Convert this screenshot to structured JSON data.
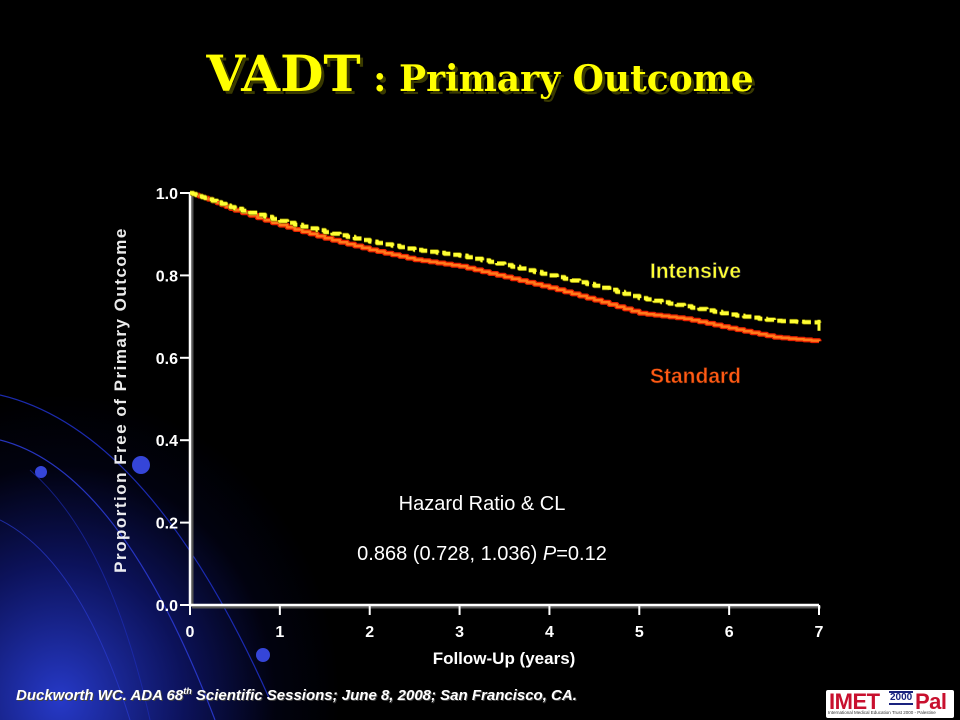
{
  "slide": {
    "title_main": "VADT",
    "title_sub": " : Primary Outcome",
    "citation_pre": "Duckworth WC. ADA 68",
    "citation_sup": "th",
    "citation_post": " Scientific Sessions; June 8, 2008; San Francisco, CA.",
    "logo": {
      "word_left": "IMET",
      "word_year": "2000",
      "word_right": "Pal",
      "tagline": "International Medical Education Trust 2000 - Palestine"
    }
  },
  "colors": {
    "title": "#ffff00",
    "intensive": "#ffff33",
    "standard_fill": "#ff7a1a",
    "standard_edge": "#e82000",
    "axis": "#ffffff"
  },
  "chart_data": {
    "type": "line",
    "title": "",
    "xlabel": "Follow-Up (years)",
    "ylabel": "Proportion Free of Primary Outcome",
    "xlim": [
      0,
      7
    ],
    "ylim": [
      0.0,
      1.0
    ],
    "x_ticks": [
      0,
      1,
      2,
      3,
      4,
      5,
      6,
      7
    ],
    "y_ticks": [
      0.0,
      0.2,
      0.4,
      0.6,
      0.8,
      1.0
    ],
    "y_tick_labels": [
      "0.0",
      "0.2",
      "0.4",
      "0.6",
      "0.8",
      "1.0"
    ],
    "grid": false,
    "series": [
      {
        "name": "Intensive",
        "style": "dashed",
        "points": [
          [
            0,
            1.0
          ],
          [
            0.2,
            0.985
          ],
          [
            0.5,
            0.962
          ],
          [
            1.0,
            0.932
          ],
          [
            1.5,
            0.905
          ],
          [
            2.0,
            0.882
          ],
          [
            2.5,
            0.862
          ],
          [
            3.0,
            0.848
          ],
          [
            3.5,
            0.825
          ],
          [
            4.0,
            0.8
          ],
          [
            4.5,
            0.775
          ],
          [
            5.0,
            0.745
          ],
          [
            5.5,
            0.725
          ],
          [
            6.0,
            0.705
          ],
          [
            6.5,
            0.69
          ],
          [
            7.0,
            0.685
          ]
        ]
      },
      {
        "name": "Standard",
        "style": "solid",
        "points": [
          [
            0,
            1.0
          ],
          [
            0.2,
            0.985
          ],
          [
            0.5,
            0.958
          ],
          [
            1.0,
            0.922
          ],
          [
            1.5,
            0.89
          ],
          [
            2.0,
            0.862
          ],
          [
            2.5,
            0.838
          ],
          [
            3.0,
            0.822
          ],
          [
            3.5,
            0.796
          ],
          [
            4.0,
            0.77
          ],
          [
            4.5,
            0.74
          ],
          [
            5.0,
            0.708
          ],
          [
            5.5,
            0.695
          ],
          [
            6.0,
            0.672
          ],
          [
            6.5,
            0.65
          ],
          [
            7.0,
            0.64
          ]
        ]
      }
    ],
    "legend": [
      {
        "label": "Intensive",
        "color": "#ffff33",
        "placement": "right, above curves"
      },
      {
        "label": "Standard",
        "color": "#ff5a14",
        "placement": "right, below curves"
      }
    ],
    "annotation": {
      "line1": "Hazard Ratio & CL",
      "line2_pre": "0.868 (0.728, 1.036) ",
      "line2_p": "P",
      "line2_post": "=0.12"
    }
  }
}
